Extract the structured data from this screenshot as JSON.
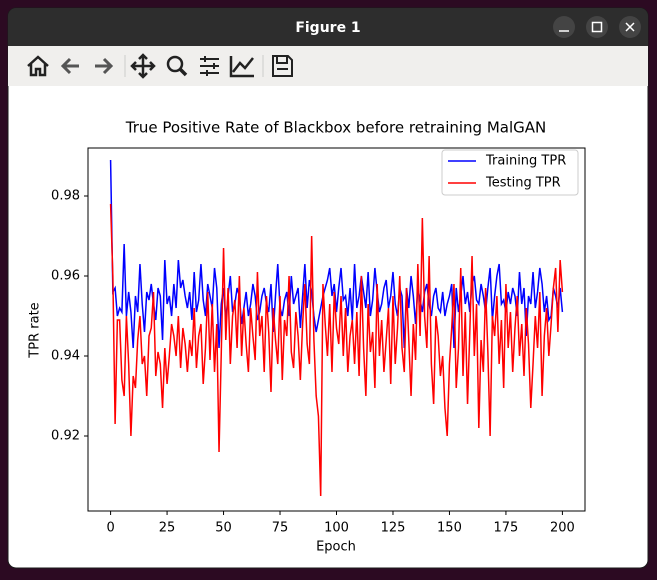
{
  "window": {
    "title": "Figure 1"
  },
  "chart_data": {
    "type": "line",
    "title": "True Positive Rate of Blackbox before retraining MalGAN",
    "x_label": "Epoch",
    "y_label": "TPR rate",
    "x": [
      0,
      1,
      2,
      3,
      4,
      5,
      6,
      7,
      8,
      9,
      10,
      11,
      12,
      13,
      14,
      15,
      16,
      17,
      18,
      19,
      20,
      21,
      22,
      23,
      24,
      25,
      26,
      27,
      28,
      29,
      30,
      31,
      32,
      33,
      34,
      35,
      36,
      37,
      38,
      39,
      40,
      41,
      42,
      43,
      44,
      45,
      46,
      47,
      48,
      49,
      50,
      51,
      52,
      53,
      54,
      55,
      56,
      57,
      58,
      59,
      60,
      61,
      62,
      63,
      64,
      65,
      66,
      67,
      68,
      69,
      70,
      71,
      72,
      73,
      74,
      75,
      76,
      77,
      78,
      79,
      80,
      81,
      82,
      83,
      84,
      85,
      86,
      87,
      88,
      89,
      90,
      91,
      92,
      93,
      94,
      95,
      96,
      97,
      98,
      99,
      100,
      101,
      102,
      103,
      104,
      105,
      106,
      107,
      108,
      109,
      110,
      111,
      112,
      113,
      114,
      115,
      116,
      117,
      118,
      119,
      120,
      121,
      122,
      123,
      124,
      125,
      126,
      127,
      128,
      129,
      130,
      131,
      132,
      133,
      134,
      135,
      136,
      137,
      138,
      139,
      140,
      141,
      142,
      143,
      144,
      145,
      146,
      147,
      148,
      149,
      150,
      151,
      152,
      153,
      154,
      155,
      156,
      157,
      158,
      159,
      160,
      161,
      162,
      163,
      164,
      165,
      166,
      167,
      168,
      169,
      170,
      171,
      172,
      173,
      174,
      175,
      176,
      177,
      178,
      179,
      180,
      181,
      182,
      183,
      184,
      185,
      186,
      187,
      188,
      189,
      190,
      191,
      192,
      193,
      194,
      195,
      196,
      197,
      198,
      199,
      200
    ],
    "series": [
      {
        "name": "Training TPR",
        "color": "#0000ff",
        "values": [
          0.989,
          0.956,
          0.957,
          0.95,
          0.952,
          0.951,
          0.968,
          0.95,
          0.956,
          0.951,
          0.942,
          0.955,
          0.951,
          0.963,
          0.953,
          0.946,
          0.956,
          0.954,
          0.958,
          0.953,
          0.949,
          0.957,
          0.955,
          0.944,
          0.964,
          0.953,
          0.955,
          0.95,
          0.958,
          0.952,
          0.964,
          0.957,
          0.959,
          0.955,
          0.952,
          0.956,
          0.949,
          0.961,
          0.951,
          0.954,
          0.963,
          0.954,
          0.95,
          0.958,
          0.955,
          0.952,
          0.962,
          0.957,
          0.942,
          0.953,
          0.957,
          0.949,
          0.955,
          0.96,
          0.951,
          0.953,
          0.957,
          0.955,
          0.948,
          0.952,
          0.956,
          0.95,
          0.953,
          0.958,
          0.955,
          0.949,
          0.951,
          0.955,
          0.957,
          0.953,
          0.951,
          0.958,
          0.946,
          0.955,
          0.963,
          0.952,
          0.95,
          0.954,
          0.956,
          0.95,
          0.96,
          0.953,
          0.955,
          0.957,
          0.947,
          0.955,
          0.963,
          0.952,
          0.959,
          0.956,
          0.95,
          0.946,
          0.949,
          0.952,
          0.955,
          0.957,
          0.959,
          0.962,
          0.955,
          0.958,
          0.951,
          0.957,
          0.962,
          0.954,
          0.955,
          0.95,
          0.957,
          0.949,
          0.963,
          0.952,
          0.955,
          0.96,
          0.956,
          0.952,
          0.961,
          0.95,
          0.954,
          0.962,
          0.956,
          0.951,
          0.953,
          0.957,
          0.959,
          0.952,
          0.955,
          0.961,
          0.953,
          0.95,
          0.957,
          0.955,
          0.942,
          0.957,
          0.952,
          0.96,
          0.955,
          0.948,
          0.957,
          0.954,
          0.951,
          0.956,
          0.958,
          0.953,
          0.95,
          0.955,
          0.957,
          0.952,
          0.951,
          0.956,
          0.95,
          0.953,
          0.955,
          0.958,
          0.942,
          0.957,
          0.951,
          0.955,
          0.96,
          0.953,
          0.956,
          0.951,
          0.958,
          0.96,
          0.954,
          0.953,
          0.958,
          0.955,
          0.951,
          0.957,
          0.962,
          0.949,
          0.955,
          0.96,
          0.963,
          0.953,
          0.954,
          0.951,
          0.956,
          0.953,
          0.957,
          0.955,
          0.95,
          0.961,
          0.953,
          0.957,
          0.945,
          0.955,
          0.953,
          0.961,
          0.952,
          0.956,
          0.962,
          0.958,
          0.951,
          0.955,
          0.949,
          0.95,
          0.957,
          0.955,
          0.952,
          0.957,
          0.951
        ]
      },
      {
        "name": "Testing TPR",
        "color": "#ff0000",
        "values": [
          0.978,
          0.96,
          0.923,
          0.949,
          0.949,
          0.934,
          0.93,
          0.95,
          0.938,
          0.92,
          0.935,
          0.932,
          0.944,
          0.95,
          0.938,
          0.94,
          0.93,
          0.945,
          0.947,
          0.956,
          0.935,
          0.941,
          0.938,
          0.927,
          0.942,
          0.933,
          0.94,
          0.948,
          0.945,
          0.94,
          0.95,
          0.937,
          0.947,
          0.943,
          0.936,
          0.944,
          0.94,
          0.952,
          0.937,
          0.945,
          0.948,
          0.933,
          0.942,
          0.956,
          0.939,
          0.953,
          0.936,
          0.948,
          0.916,
          0.941,
          0.967,
          0.944,
          0.957,
          0.938,
          0.95,
          0.954,
          0.942,
          0.96,
          0.94,
          0.952,
          0.943,
          0.936,
          0.952,
          0.945,
          0.939,
          0.961,
          0.945,
          0.95,
          0.936,
          0.955,
          0.946,
          0.931,
          0.952,
          0.944,
          0.938,
          0.955,
          0.934,
          0.949,
          0.945,
          0.96,
          0.941,
          0.937,
          0.951,
          0.945,
          0.934,
          0.948,
          0.958,
          0.943,
          0.938,
          0.97,
          0.944,
          0.93,
          0.925,
          0.905,
          0.958,
          0.948,
          0.94,
          0.953,
          0.936,
          0.956,
          0.947,
          0.943,
          0.955,
          0.94,
          0.952,
          0.936,
          0.945,
          0.949,
          0.938,
          0.951,
          0.935,
          0.96,
          0.942,
          0.93,
          0.953,
          0.941,
          0.946,
          0.932,
          0.958,
          0.94,
          0.949,
          0.936,
          0.944,
          0.952,
          0.933,
          0.955,
          0.938,
          0.947,
          0.96,
          0.942,
          0.936,
          0.957,
          0.944,
          0.93,
          0.948,
          0.939,
          0.963,
          0.945,
          0.9745,
          0.95,
          0.942,
          0.965,
          0.938,
          0.928,
          0.95,
          0.945,
          0.935,
          0.94,
          0.927,
          0.92,
          0.938,
          0.947,
          0.958,
          0.932,
          0.942,
          0.962,
          0.935,
          0.951,
          0.928,
          0.946,
          0.965,
          0.94,
          0.953,
          0.922,
          0.944,
          0.936,
          0.957,
          0.941,
          0.92,
          0.95,
          0.945,
          0.955,
          0.938,
          0.949,
          0.932,
          0.958,
          0.942,
          0.951,
          0.936,
          0.947,
          0.955,
          0.94,
          0.948,
          0.935,
          0.952,
          0.943,
          0.927,
          0.938,
          0.95,
          0.942,
          0.956,
          0.93,
          0.945,
          0.952,
          0.94,
          0.948,
          0.957,
          0.962,
          0.946,
          0.964,
          0.956
        ]
      }
    ],
    "xlim": [
      -10,
      210
    ],
    "ylim": [
      0.90125,
      0.992
    ],
    "xticks": [
      0,
      25,
      50,
      75,
      100,
      125,
      150,
      175,
      200
    ],
    "yticks": [
      0.92,
      0.94,
      0.96,
      0.98
    ],
    "legend": "upper right",
    "grid": false
  }
}
